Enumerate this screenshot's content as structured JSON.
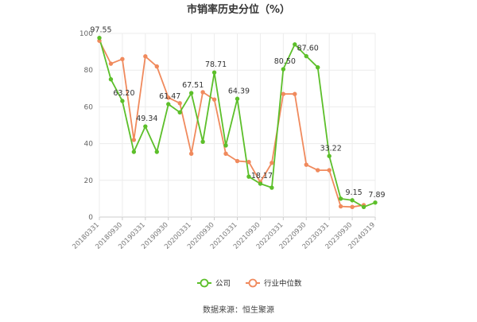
{
  "chart_data": {
    "type": "line",
    "title": "市销率历史分位（%）",
    "source": "数据来源：恒生聚源",
    "ylim": [
      0,
      100
    ],
    "yticks": [
      0,
      20,
      40,
      60,
      80,
      100
    ],
    "grid": true,
    "legend_position": "bottom-center",
    "x_tick_labels": [
      "20180331",
      "20180930",
      "20190331",
      "20190930",
      "20200331",
      "20200930",
      "20210331",
      "20210930",
      "20220331",
      "20220930",
      "20230331",
      "20230930",
      "20240319"
    ],
    "x": [
      "20180331",
      "20180630",
      "20180930",
      "20181231",
      "20190331",
      "20190630",
      "20190930",
      "20191231",
      "20200331",
      "20200630",
      "20200930",
      "20201231",
      "20210331",
      "20210630",
      "20210930",
      "20211231",
      "20220331",
      "20220630",
      "20220930",
      "20221231",
      "20230331",
      "20230630",
      "20230930",
      "20231231",
      "20240319"
    ],
    "series": [
      {
        "name": "公司",
        "color": "#5cbf2a",
        "values": [
          97.55,
          75,
          63.2,
          35.5,
          49.34,
          35.5,
          61.47,
          57,
          67.51,
          41,
          78.71,
          39,
          64.39,
          22,
          18.17,
          16,
          80.5,
          94,
          87.6,
          81.5,
          33.22,
          10,
          9.15,
          5.5,
          7.89
        ],
        "labels": {
          "0": "97.55",
          "2": "63.20",
          "4": "49.34",
          "6": "61.47",
          "8": "67.51",
          "10": "78.71",
          "12": "64.39",
          "14": "18.17",
          "16": "80.50",
          "18": "87.60",
          "20": "33.22",
          "22": "9.15",
          "24": "7.89"
        }
      },
      {
        "name": "行业中位数",
        "color": "#f08a5d",
        "values": [
          96,
          83.5,
          86,
          42,
          87.5,
          82,
          65,
          62,
          34.5,
          68,
          64,
          34.5,
          30.5,
          30,
          19,
          29.5,
          67,
          67,
          28.5,
          25.5,
          25.5,
          5.8,
          5.5,
          6.5,
          null
        ]
      }
    ]
  }
}
